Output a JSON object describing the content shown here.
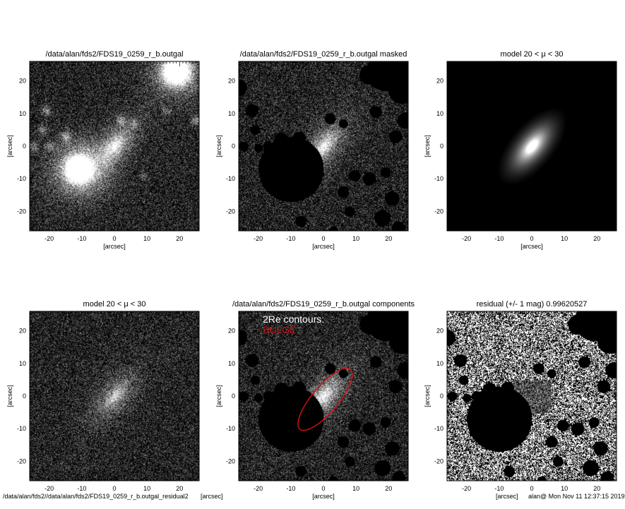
{
  "chart_data": [
    {
      "type": "heatmap",
      "image": "observed galaxy",
      "title": "/data/alan/fds2/FDS19_0259_r_b.outgal",
      "xlabel": "[arcsec]",
      "ylabel": "[arcsec]",
      "xlim": [
        -26,
        26
      ],
      "ylim": [
        -26,
        26
      ],
      "xticks": [
        -20,
        -10,
        0,
        10,
        20
      ],
      "yticks": [
        -20,
        -10,
        0,
        10,
        20
      ],
      "colormap": "grayscale"
    },
    {
      "type": "heatmap",
      "image": "masked galaxy",
      "title": "/data/alan/fds2/FDS19_0259_r_b.outgal masked",
      "xlabel": "[arcsec]",
      "ylabel": "[arcsec]",
      "xlim": [
        -26,
        26
      ],
      "ylim": [
        -26,
        26
      ],
      "xticks": [
        -20,
        -10,
        0,
        10,
        20
      ],
      "yticks": [
        -20,
        -10,
        0,
        10,
        20
      ],
      "colormap": "grayscale"
    },
    {
      "type": "heatmap",
      "image": "model",
      "title": "model 20 < μ < 30",
      "xlabel": "[arcsec]",
      "ylabel": "[arcsec]",
      "xlim": [
        -26,
        26
      ],
      "ylim": [
        -26,
        26
      ],
      "xticks": [
        -20,
        -10,
        0,
        10,
        20
      ],
      "yticks": [
        -20,
        -10,
        0,
        10,
        20
      ],
      "colormap": "grayscale"
    },
    {
      "type": "heatmap",
      "image": "model with noise",
      "title": "model 20 < μ < 30",
      "xlabel": "",
      "ylabel": "[arcsec]",
      "xlim": [
        -26,
        26
      ],
      "ylim": [
        -26,
        26
      ],
      "xticks": [
        -20,
        -10,
        0,
        10,
        20
      ],
      "yticks": [
        -20,
        -10,
        0,
        10,
        20
      ],
      "colormap": "grayscale"
    },
    {
      "type": "heatmap",
      "image": "masked galaxy with contours",
      "title": "/data/alan/fds2/FDS19_0259_r_b.outgal components",
      "xlabel": "[arcsec]",
      "ylabel": "[arcsec]",
      "xlim": [
        -26,
        26
      ],
      "ylim": [
        -26,
        26
      ],
      "xticks": [
        -20,
        -10,
        0,
        10,
        20
      ],
      "yticks": [
        -20,
        -10,
        0,
        10,
        20
      ],
      "colormap": "grayscale",
      "legend": {
        "heading": "2Re contours:",
        "entries": [
          {
            "name": "BULGE",
            "color": "#cc1111"
          }
        ]
      },
      "contours": [
        {
          "name": "BULGE",
          "color": "#cc1111",
          "center": [
            0.5,
            -1
          ],
          "semi_major": 12,
          "semi_minor": 4,
          "angle_deg": 50
        }
      ]
    },
    {
      "type": "heatmap",
      "image": "residual",
      "title": "residual  (+/- 1 mag)       0.99620527",
      "xlabel": "",
      "ylabel": "[arcsec]",
      "xlim": [
        -26,
        26
      ],
      "ylim": [
        -26,
        26
      ],
      "xticks": [
        -20,
        -10,
        0,
        10,
        20
      ],
      "yticks": [
        -20,
        -10,
        0,
        10,
        20
      ],
      "colormap": "binary"
    }
  ],
  "footer": {
    "left": "/data/alan/fds2//data/alan/fds2/FDS19_0259_r_b.outgal_residual2",
    "left_overlap": "[arcsec]",
    "right": "alan@  Mon Nov 11 12:37:15 2019",
    "right_overlap": "[arcsec]"
  }
}
